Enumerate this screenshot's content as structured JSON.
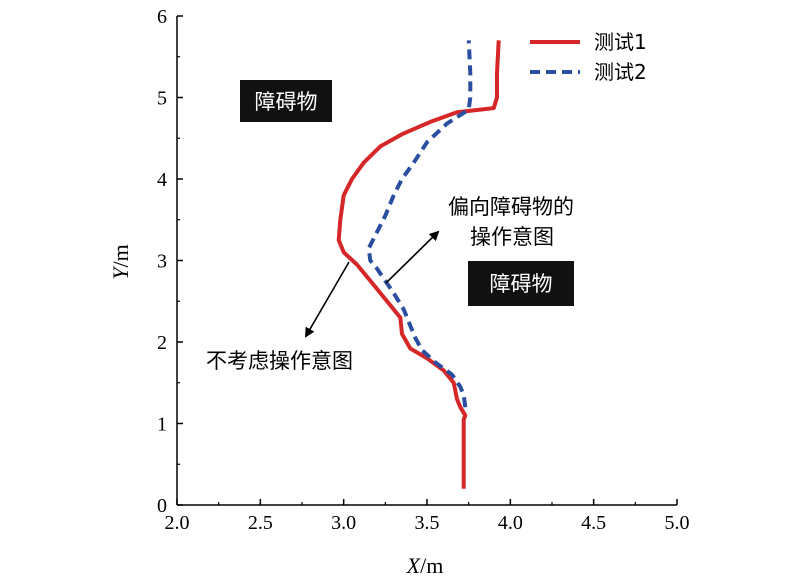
{
  "chart_data": {
    "type": "line",
    "xlabel_var": "X",
    "xlabel_unit": "/m",
    "ylabel_var": "Y",
    "ylabel_unit": "/m",
    "xlim": [
      2.0,
      5.0
    ],
    "ylim": [
      0,
      6
    ],
    "xticks": [
      "2.0",
      "2.5",
      "3.0",
      "3.5",
      "4.0",
      "4.5",
      "5.0"
    ],
    "yticks": [
      "0",
      "1",
      "2",
      "3",
      "4",
      "5",
      "6"
    ],
    "grid": false,
    "legend_position": "top-right",
    "series": [
      {
        "name": "测试1",
        "color": "#d62728",
        "style": "solid",
        "points": [
          [
            3.72,
            0.2
          ],
          [
            3.72,
            0.6
          ],
          [
            3.72,
            1.05
          ],
          [
            3.73,
            1.1
          ],
          [
            3.7,
            1.2
          ],
          [
            3.68,
            1.3
          ],
          [
            3.66,
            1.5
          ],
          [
            3.6,
            1.65
          ],
          [
            3.5,
            1.8
          ],
          [
            3.4,
            1.92
          ],
          [
            3.35,
            2.1
          ],
          [
            3.34,
            2.3
          ],
          [
            3.28,
            2.45
          ],
          [
            3.18,
            2.7
          ],
          [
            3.08,
            2.95
          ],
          [
            3.0,
            3.1
          ],
          [
            2.97,
            3.25
          ],
          [
            2.98,
            3.5
          ],
          [
            3.0,
            3.8
          ],
          [
            3.05,
            4.0
          ],
          [
            3.12,
            4.2
          ],
          [
            3.22,
            4.4
          ],
          [
            3.35,
            4.55
          ],
          [
            3.52,
            4.7
          ],
          [
            3.68,
            4.82
          ],
          [
            3.9,
            4.87
          ],
          [
            3.92,
            5.0
          ],
          [
            3.92,
            5.3
          ],
          [
            3.93,
            5.7
          ]
        ]
      },
      {
        "name": "测试2",
        "color": "#2b4fa0",
        "style": "dashed",
        "points": [
          [
            3.73,
            1.2
          ],
          [
            3.72,
            1.35
          ],
          [
            3.7,
            1.45
          ],
          [
            3.65,
            1.6
          ],
          [
            3.55,
            1.75
          ],
          [
            3.47,
            1.9
          ],
          [
            3.43,
            2.05
          ],
          [
            3.4,
            2.2
          ],
          [
            3.36,
            2.4
          ],
          [
            3.3,
            2.6
          ],
          [
            3.25,
            2.75
          ],
          [
            3.2,
            2.9
          ],
          [
            3.16,
            3.0
          ],
          [
            3.15,
            3.15
          ],
          [
            3.2,
            3.35
          ],
          [
            3.25,
            3.55
          ],
          [
            3.3,
            3.8
          ],
          [
            3.35,
            4.0
          ],
          [
            3.42,
            4.2
          ],
          [
            3.5,
            4.45
          ],
          [
            3.62,
            4.68
          ],
          [
            3.75,
            4.85
          ],
          [
            3.76,
            5.0
          ],
          [
            3.76,
            5.3
          ],
          [
            3.75,
            5.7
          ]
        ]
      }
    ],
    "annotations": {
      "obstacle_label": "障碍物",
      "biased_line1": "偏向障碍物的",
      "biased_line2": "操作意图",
      "no_intent": "不考虑操作意图"
    }
  }
}
